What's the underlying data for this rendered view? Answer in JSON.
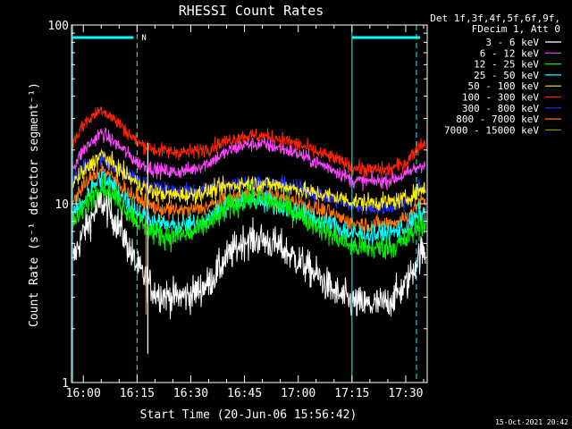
{
  "chart_data": {
    "type": "line",
    "title": "RHESSI Count Rates",
    "xlabel": "Start Time (20-Jun-06 15:56:42)",
    "ylabel": "Count Rate (s⁻¹ detector segment⁻¹)",
    "y_scale": "log",
    "ylim": [
      1,
      100
    ],
    "xlim": [
      "15:56:42",
      "17:36:00"
    ],
    "x_ticks": [
      "16:00",
      "16:15",
      "16:30",
      "16:45",
      "17:00",
      "17:15",
      "17:30"
    ],
    "y_ticks": [
      "1",
      "10",
      "100"
    ],
    "grid": false,
    "legend_position": "right",
    "legend_header": [
      "Det 1f,3f,4f,5f,6f,9f,",
      "FDecim 1, Att 0"
    ],
    "series": [
      {
        "name": "3 - 6 keV",
        "color": "#ffffff",
        "x": [
          "15:57",
          "16:00",
          "16:05",
          "16:10",
          "16:15",
          "16:20",
          "16:25",
          "16:30",
          "16:35",
          "16:40",
          "16:45",
          "16:50",
          "16:55",
          "17:00",
          "17:05",
          "17:10",
          "17:15",
          "17:20",
          "17:25",
          "17:30",
          "17:34"
        ],
        "values": [
          4.8,
          7.0,
          10.3,
          7.5,
          4.4,
          3.2,
          3.0,
          3.1,
          3.6,
          5.0,
          6.3,
          6.3,
          5.7,
          4.8,
          4.0,
          3.2,
          2.8,
          2.7,
          2.8,
          3.5,
          5.3
        ]
      },
      {
        "name": "6 - 12 keV",
        "color": "#ff44ff",
        "x": [
          "15:57",
          "16:00",
          "16:05",
          "16:10",
          "16:15",
          "16:20",
          "16:25",
          "16:30",
          "16:35",
          "16:40",
          "16:45",
          "16:50",
          "16:55",
          "17:00",
          "17:05",
          "17:10",
          "17:15",
          "17:20",
          "17:25",
          "17:30",
          "17:34"
        ],
        "values": [
          16,
          20,
          25,
          21,
          17,
          15.5,
          15,
          15.5,
          17,
          19.5,
          21.5,
          21.5,
          20.5,
          19,
          17,
          15.5,
          13.5,
          13.3,
          13.5,
          14.5,
          16.5
        ]
      },
      {
        "name": "12 - 25 keV",
        "color": "#00ee00",
        "x": [
          "15:57",
          "16:00",
          "16:05",
          "16:10",
          "16:15",
          "16:20",
          "16:25",
          "16:30",
          "16:35",
          "16:40",
          "16:45",
          "16:50",
          "16:55",
          "17:00",
          "17:05",
          "17:10",
          "17:15",
          "17:20",
          "17:25",
          "17:30",
          "17:34"
        ],
        "values": [
          7.5,
          9.5,
          12.8,
          10.3,
          8.0,
          6.8,
          6.5,
          6.8,
          7.8,
          9.3,
          10.6,
          10.6,
          9.8,
          8.8,
          7.6,
          6.6,
          5.8,
          5.6,
          5.7,
          6.2,
          7.7
        ]
      },
      {
        "name": "25 - 50 keV",
        "color": "#00ffff",
        "x": [
          "15:57",
          "16:00",
          "16:05",
          "16:10",
          "16:15",
          "16:20",
          "16:25",
          "16:30",
          "16:35",
          "16:40",
          "16:45",
          "16:50",
          "16:55",
          "17:00",
          "17:05",
          "17:10",
          "17:15",
          "17:20",
          "17:25",
          "17:30",
          "17:34"
        ],
        "values": [
          8.5,
          10.5,
          14.2,
          11.5,
          9.0,
          7.8,
          7.5,
          7.6,
          8.4,
          9.6,
          10.5,
          10.5,
          9.8,
          9.0,
          8.2,
          7.5,
          6.8,
          6.7,
          6.8,
          7.3,
          8.8
        ]
      },
      {
        "name": "50 - 100 keV",
        "color": "#ffee00",
        "x": [
          "15:57",
          "16:00",
          "16:05",
          "16:10",
          "16:15",
          "16:20",
          "16:25",
          "16:30",
          "16:35",
          "16:40",
          "16:45",
          "16:50",
          "16:55",
          "17:00",
          "17:05",
          "17:10",
          "17:15",
          "17:20",
          "17:25",
          "17:30",
          "17:34"
        ],
        "values": [
          13,
          15,
          19,
          15.5,
          13,
          11.5,
          11.2,
          11.2,
          11.8,
          12.5,
          13,
          13,
          12.6,
          12,
          11.4,
          11,
          10.3,
          10.2,
          10.2,
          10.6,
          12
        ]
      },
      {
        "name": "100 - 300 keV",
        "color": "#ff2200",
        "x": [
          "15:57",
          "16:00",
          "16:05",
          "16:10",
          "16:15",
          "16:20",
          "16:25",
          "16:30",
          "16:35",
          "16:40",
          "16:45",
          "16:50",
          "16:55",
          "17:00",
          "17:05",
          "17:10",
          "17:15",
          "17:20",
          "17:25",
          "17:30",
          "17:34"
        ],
        "values": [
          22,
          28,
          34,
          28,
          22,
          20,
          19.5,
          19.5,
          20.5,
          22.5,
          24,
          24,
          23,
          21.5,
          19.5,
          18,
          16,
          15.5,
          15.5,
          17,
          21.5
        ]
      },
      {
        "name": "300 - 800 keV",
        "color": "#2233ff",
        "x": [
          "15:57",
          "16:00",
          "16:05",
          "16:10",
          "16:15",
          "16:20",
          "16:25",
          "16:30",
          "16:35",
          "16:40",
          "16:45",
          "16:50",
          "16:55",
          "17:00",
          "17:05",
          "17:10",
          "17:15",
          "17:20",
          "17:25",
          "17:30",
          "17:34"
        ],
        "values": [
          14,
          16,
          18,
          15.5,
          13.5,
          12.3,
          11.8,
          11.8,
          12,
          12.8,
          13.2,
          13.2,
          12.8,
          12.2,
          11.4,
          10.6,
          9.7,
          9.5,
          9.5,
          10.2,
          12.5
        ]
      },
      {
        "name": "800 - 7000 keV",
        "color": "#ff7700",
        "x": [
          "15:57",
          "16:00",
          "16:05",
          "16:10",
          "16:15",
          "16:20",
          "16:25",
          "16:30",
          "16:35",
          "16:40",
          "16:45",
          "16:50",
          "16:55",
          "17:00",
          "17:05",
          "17:10",
          "17:15",
          "17:20",
          "17:25",
          "17:30",
          "17:34"
        ],
        "values": [
          10.5,
          12.5,
          15.8,
          12.8,
          10.7,
          9.5,
          9.2,
          9.2,
          9.7,
          10.6,
          11.2,
          11.2,
          10.8,
          10.2,
          9.4,
          8.6,
          7.8,
          7.6,
          7.7,
          8.3,
          10.3
        ]
      },
      {
        "name": "7000 - 15000 keV",
        "color": "#888800",
        "x": [],
        "values": []
      }
    ],
    "annotations": {
      "attenuator_bars": [
        {
          "label": "N",
          "x_start": "15:57",
          "x_end": "16:14"
        },
        {
          "label": "",
          "x_start": "17:15",
          "x_end": "17:34"
        }
      ],
      "dashed_lines": [
        "16:15",
        "17:33"
      ],
      "solid_lines": [
        "15:57",
        "17:15"
      ]
    }
  },
  "footer": {
    "timestamp": "15-Oct-2021 20:42"
  }
}
